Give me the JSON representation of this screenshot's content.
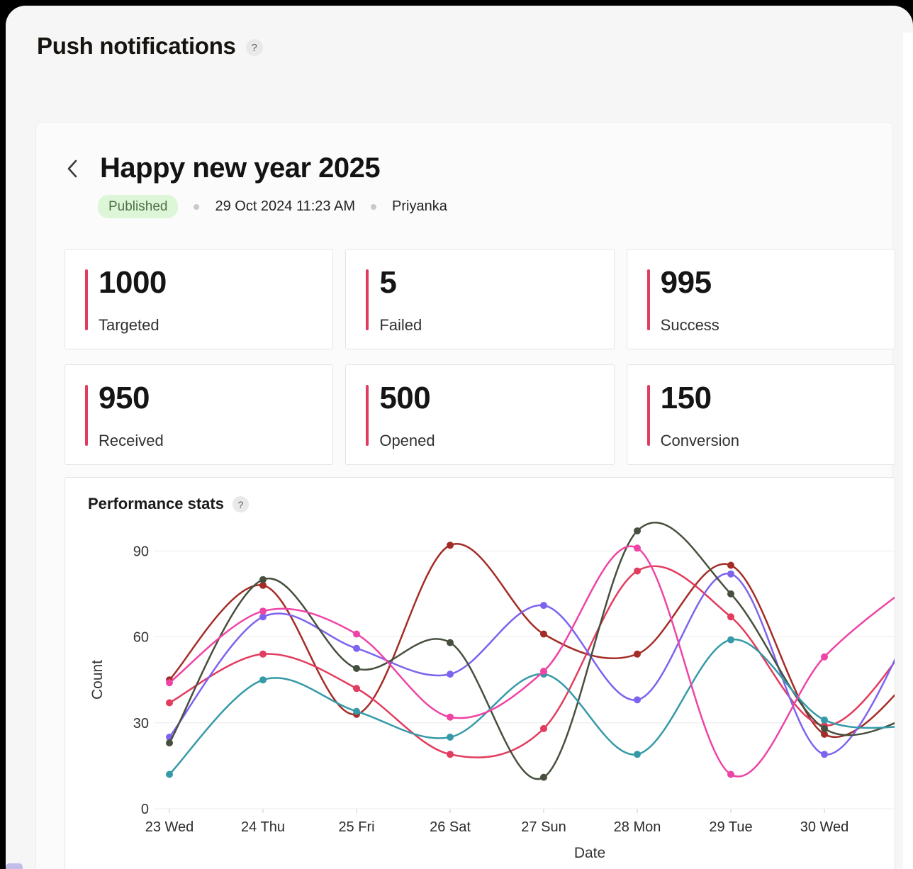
{
  "page": {
    "title": "Push notifications",
    "help_icon": "?"
  },
  "campaign": {
    "title": "Happy new year 2025",
    "status": "Published",
    "datetime": "29 Oct 2024 11:23 AM",
    "author": "Priyanka"
  },
  "stats": [
    {
      "value": "1000",
      "label": "Targeted"
    },
    {
      "value": "5",
      "label": "Failed"
    },
    {
      "value": "995",
      "label": "Success"
    },
    {
      "value": "950",
      "label": "Received"
    },
    {
      "value": "500",
      "label": "Opened"
    },
    {
      "value": "150",
      "label": "Conversion"
    }
  ],
  "performance": {
    "title": "Performance stats",
    "help_icon": "?"
  },
  "chart_data": {
    "type": "line",
    "title": "Performance stats",
    "xlabel": "Date",
    "ylabel": "Count",
    "categories": [
      "23 Wed",
      "24 Thu",
      "25 Fri",
      "26 Sat",
      "27 Sun",
      "28 Mon",
      "29 Tue",
      "30 Wed"
    ],
    "ylim": [
      0,
      101
    ],
    "yticks": [
      0,
      30,
      60,
      90
    ],
    "grid": "horizontal-only",
    "legend": "none",
    "curve": "smooth",
    "point_style": "filled-circle",
    "continues_past_right_edge": true,
    "series": [
      {
        "name": "dark-red",
        "color": "#a42c26",
        "values": [
          45,
          78,
          33,
          92,
          61,
          54,
          85,
          26
        ],
        "offscreen_next_estimate": 48
      },
      {
        "name": "crimson",
        "color": "#e23c5e",
        "values": [
          37,
          54,
          42,
          19,
          28,
          83,
          67,
          29
        ],
        "offscreen_next_estimate": 62
      },
      {
        "name": "purple",
        "color": "#7d63ee",
        "values": [
          25,
          67,
          56,
          47,
          71,
          38,
          82,
          19
        ],
        "offscreen_next_estimate": 68
      },
      {
        "name": "olive",
        "color": "#46503e",
        "values": [
          23,
          80,
          49,
          58,
          11,
          97,
          75,
          28
        ],
        "offscreen_next_estimate": 33
      },
      {
        "name": "teal",
        "color": "#359aa8",
        "values": [
          12,
          45,
          34,
          25,
          47,
          19,
          59,
          31
        ],
        "offscreen_next_estimate": 29
      },
      {
        "name": "pink",
        "color": "#ee44a6",
        "values": [
          44,
          69,
          61,
          32,
          48,
          91,
          12,
          53
        ],
        "offscreen_next_estimate": 80
      }
    ],
    "axis_colors": {
      "grid": "#ececec",
      "tick": "#cccccc",
      "label": "#333333"
    }
  },
  "accent": {
    "stat_bar_color": "#e23b5f",
    "badge_bg": "#ddf6d8",
    "badge_text": "#4e7147"
  }
}
